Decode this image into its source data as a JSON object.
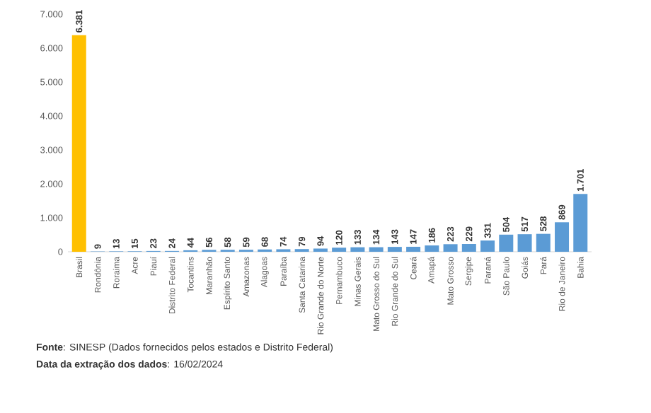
{
  "chart_data": {
    "type": "bar",
    "categories": [
      "Brasil",
      "Rondônia",
      "Roraima",
      "Acre",
      "Piauí",
      "Distrito Federal",
      "Tocantins",
      "Maranhão",
      "Espírito Santo",
      "Amazonas",
      "Alagoas",
      "Paraíba",
      "Santa Catarina",
      "Rio Grande do Norte",
      "Pernambuco",
      "Minas Gerais",
      "Mato Grosso do Sul",
      "Rio Grande do Sul",
      "Ceará",
      "Amapá",
      "Mato Grosso",
      "Sergipe",
      "Paraná",
      "São Paulo",
      "Goiás",
      "Pará",
      "Rio de Janeiro",
      "Bahia"
    ],
    "values": [
      6381,
      9,
      13,
      15,
      23,
      24,
      44,
      56,
      58,
      59,
      68,
      74,
      79,
      94,
      120,
      133,
      134,
      143,
      147,
      186,
      223,
      229,
      331,
      504,
      517,
      528,
      869,
      1701
    ],
    "colors": [
      "#ffc000",
      "#5b9bd5",
      "#5b9bd5",
      "#5b9bd5",
      "#5b9bd5",
      "#5b9bd5",
      "#5b9bd5",
      "#5b9bd5",
      "#5b9bd5",
      "#5b9bd5",
      "#5b9bd5",
      "#5b9bd5",
      "#5b9bd5",
      "#5b9bd5",
      "#5b9bd5",
      "#5b9bd5",
      "#5b9bd5",
      "#5b9bd5",
      "#5b9bd5",
      "#5b9bd5",
      "#5b9bd5",
      "#5b9bd5",
      "#5b9bd5",
      "#5b9bd5",
      "#5b9bd5",
      "#5b9bd5",
      "#5b9bd5",
      "#5b9bd5"
    ],
    "value_labels": [
      "6.381",
      "9",
      "13",
      "15",
      "23",
      "24",
      "44",
      "56",
      "58",
      "59",
      "68",
      "74",
      "79",
      "94",
      "120",
      "133",
      "134",
      "143",
      "147",
      "186",
      "223",
      "229",
      "331",
      "504",
      "517",
      "528",
      "869",
      "1.701"
    ],
    "ylim": [
      0,
      7000
    ],
    "yticks": [
      {
        "value": 0,
        "label": "0"
      },
      {
        "value": 1000,
        "label": "1.000"
      },
      {
        "value": 2000,
        "label": "2.000"
      },
      {
        "value": 3000,
        "label": "3.000"
      },
      {
        "value": 4000,
        "label": "4.000"
      },
      {
        "value": 5000,
        "label": "5.000"
      },
      {
        "value": 6000,
        "label": "6.000"
      },
      {
        "value": 7000,
        "label": "7.000"
      }
    ],
    "grid": false,
    "annotations": [
      "**Fonte**: SINESP (Dados fornecidos pelos estados e Distrito Federal)",
      "**Data da extração dos dados**: 16/02/2024"
    ]
  }
}
